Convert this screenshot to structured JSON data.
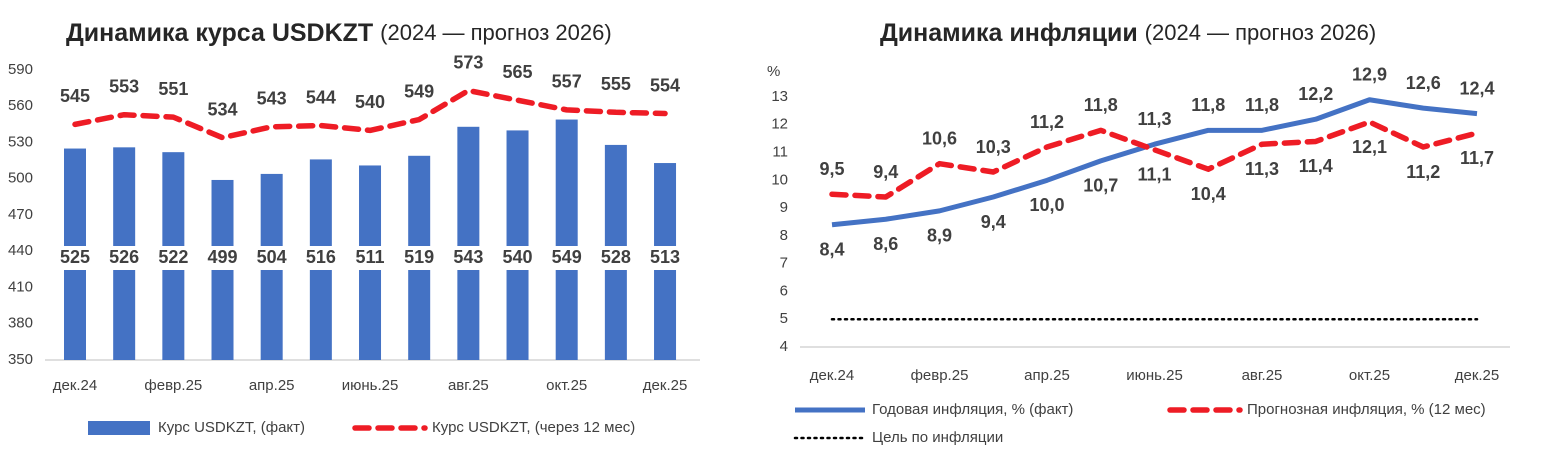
{
  "chart_data": [
    {
      "type": "bar",
      "title": "Динамика курса USDKZT",
      "subtitle": "(2024 — прогноз 2026)",
      "categories": [
        "дек.24",
        null,
        "февр.25",
        null,
        "апр.25",
        null,
        "июнь.25",
        null,
        "авг.25",
        null,
        "окт.25",
        null,
        "дек.25"
      ],
      "series": [
        {
          "name": "Курс USDKZT, (факт)",
          "type": "bar",
          "color": "#4472c4",
          "values": [
            525,
            526,
            522,
            499,
            504,
            516,
            511,
            519,
            543,
            540,
            549,
            528,
            513
          ]
        },
        {
          "name": "Курс USDKZT, (через 12 мес)",
          "type": "line",
          "style": "dashed",
          "color": "#ee1c25",
          "values": [
            545,
            553,
            551,
            534,
            543,
            544,
            540,
            549,
            573,
            565,
            557,
            555,
            554
          ]
        }
      ],
      "ylim": [
        350,
        590
      ],
      "yticks": [
        350,
        380,
        410,
        440,
        470,
        500,
        530,
        560,
        590
      ]
    },
    {
      "type": "line",
      "title": "Динамика инфляции",
      "subtitle": "(2024 — прогноз 2026)",
      "y_label": "%",
      "categories": [
        "дек.24",
        null,
        "февр.25",
        null,
        "апр.25",
        null,
        "июнь.25",
        null,
        "авг.25",
        null,
        "окт.25",
        null,
        "дек.25"
      ],
      "series": [
        {
          "name": "Годовая инфляция, % (факт)",
          "style": "solid",
          "color": "#4472c4",
          "values": [
            8.4,
            8.6,
            8.9,
            9.4,
            10.0,
            10.7,
            11.3,
            11.8,
            11.8,
            12.2,
            12.9,
            12.6,
            12.4
          ],
          "value_labels": [
            "8,4",
            "8,6",
            "8,9",
            "9,4",
            "10,0",
            "10,7",
            "11,3",
            "11,8",
            "11,8",
            "12,2",
            "12,9",
            "12,6",
            "12,4"
          ]
        },
        {
          "name": "Прогнозная инфляция, % (12 мес)",
          "style": "dashed",
          "color": "#ee1c25",
          "values": [
            9.5,
            9.4,
            10.6,
            10.3,
            11.2,
            11.8,
            11.1,
            10.4,
            11.3,
            11.4,
            12.1,
            11.2,
            11.7
          ],
          "value_labels": [
            "9,5",
            "9,4",
            "10,6",
            "10,3",
            "11,2",
            "11,8",
            "11,1",
            "10,4",
            "11,3",
            "11,4",
            "12,1",
            "11,2",
            "11,7"
          ]
        },
        {
          "name": "Цель по инфляции",
          "style": "dotted",
          "color": "#000000",
          "values": [
            5,
            5,
            5,
            5,
            5,
            5,
            5,
            5,
            5,
            5,
            5,
            5,
            5
          ]
        }
      ],
      "ylim": [
        4,
        13
      ],
      "yticks": [
        4,
        5,
        6,
        7,
        8,
        9,
        10,
        11,
        12,
        13
      ]
    }
  ]
}
